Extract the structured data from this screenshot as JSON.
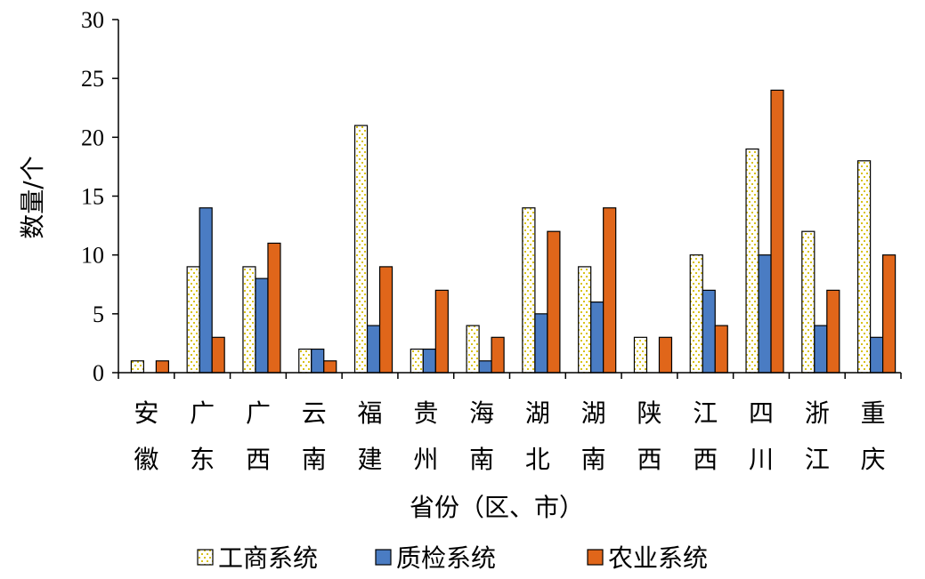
{
  "chart_data": {
    "type": "bar",
    "categories": [
      [
        "安",
        "徽"
      ],
      [
        "广",
        "东"
      ],
      [
        "广",
        "西"
      ],
      [
        "云",
        "南"
      ],
      [
        "福",
        "建"
      ],
      [
        "贵",
        "州"
      ],
      [
        "海",
        "南"
      ],
      [
        "湖",
        "北"
      ],
      [
        "湖",
        "南"
      ],
      [
        "陕",
        "西"
      ],
      [
        "江",
        "西"
      ],
      [
        "四",
        "川"
      ],
      [
        "浙",
        "江"
      ],
      [
        "重",
        "庆"
      ]
    ],
    "series": [
      {
        "name": "工商系统",
        "values": [
          1,
          9,
          9,
          2,
          21,
          2,
          4,
          14,
          9,
          3,
          10,
          19,
          12,
          18
        ],
        "color": "#ffffff",
        "pattern": "dotted-yellow"
      },
      {
        "name": "质检系统",
        "values": [
          0,
          14,
          8,
          2,
          4,
          2,
          1,
          5,
          6,
          0,
          7,
          10,
          4,
          3
        ],
        "color": "#4a7cc3"
      },
      {
        "name": "农业系统",
        "values": [
          1,
          3,
          11,
          1,
          9,
          7,
          3,
          12,
          14,
          3,
          4,
          24,
          7,
          10
        ],
        "color": "#e0661a"
      }
    ],
    "ylabel": "数量/个",
    "xlabel": "省份（区、市）",
    "ylim": [
      0,
      30
    ],
    "yticks": [
      "0",
      "5",
      "10",
      "15",
      "20",
      "25",
      "30"
    ],
    "grid": false,
    "legend": "bottom"
  }
}
